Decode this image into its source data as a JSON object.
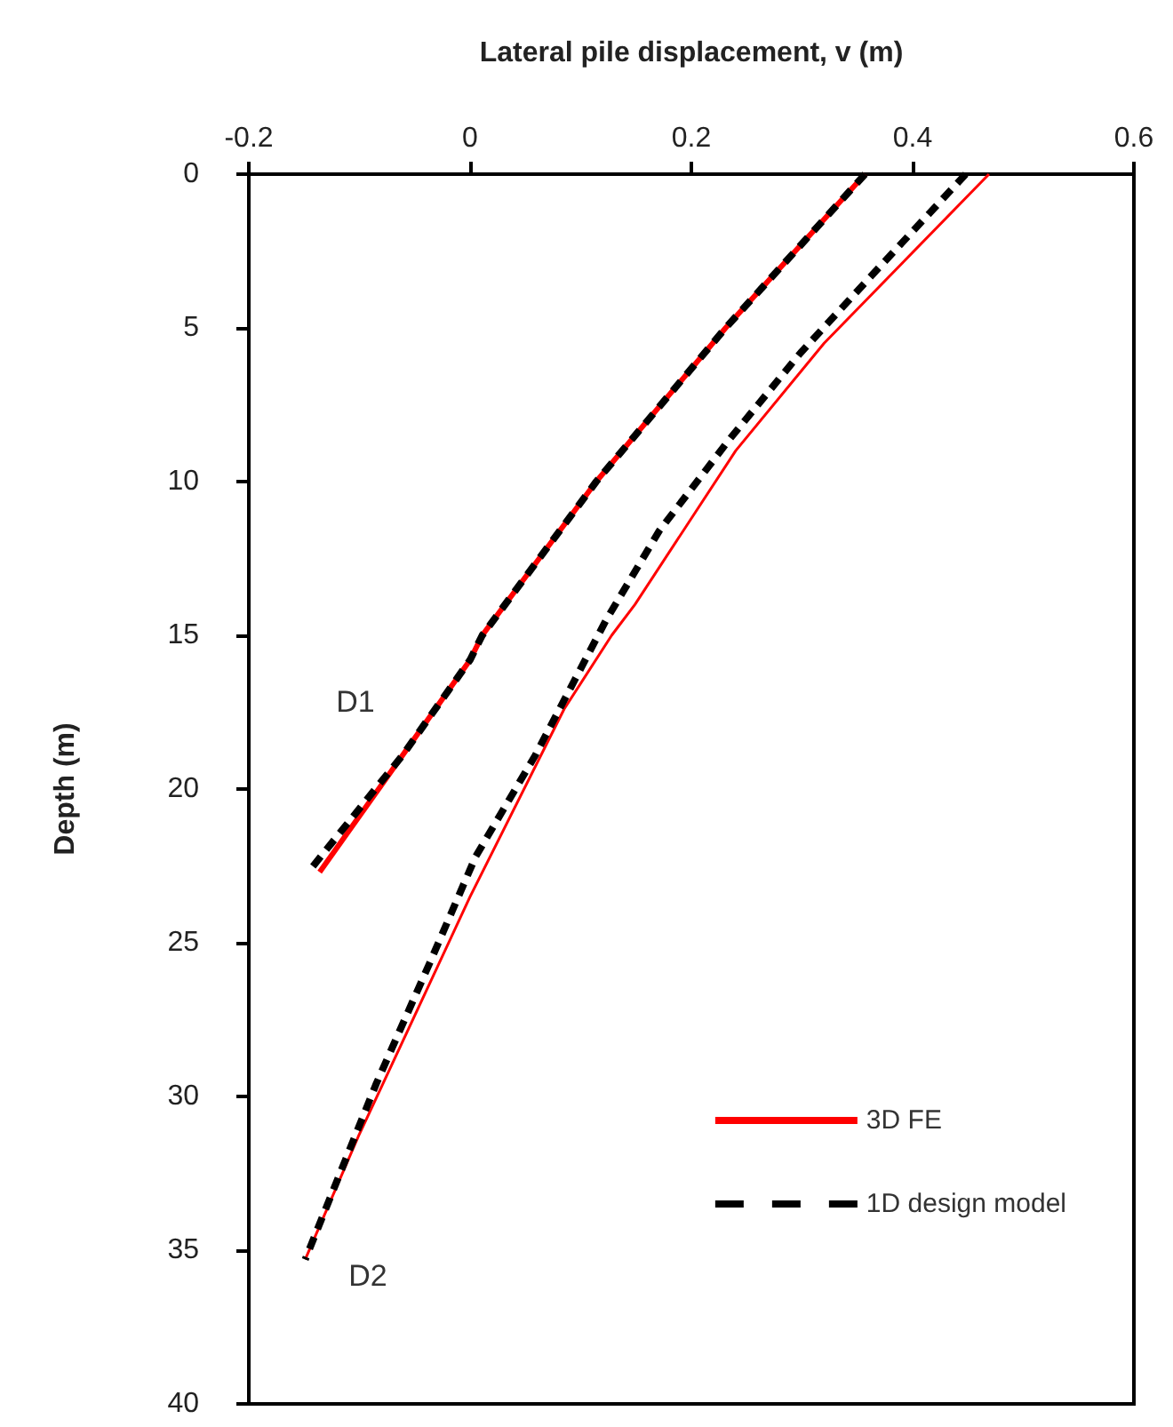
{
  "chart_data": {
    "type": "line",
    "xlabel": "Lateral pile displacement, v (m)",
    "ylabel": "Depth (m)",
    "xlim": [
      -0.2,
      0.6
    ],
    "xticks": [
      -0.2,
      0,
      0.2,
      0.4,
      0.6
    ],
    "ylim": [
      40,
      0
    ],
    "yticks": [
      0,
      5,
      10,
      15,
      20,
      25,
      30,
      35,
      40
    ],
    "grid": false,
    "legend": "bottom right",
    "marker": "none",
    "series": [
      {
        "name": "3D FE",
        "color": "#ff0000",
        "line_style": "solid",
        "x": [
          0.357,
          0.231,
          0.114,
          0.011,
          0,
          -0.061,
          -0.136
        ],
        "values": [
          0,
          5,
          10,
          15,
          15.8,
          18.9,
          22.7
        ]
      },
      {
        "name": "1D design model",
        "color": "#000000",
        "line_style": "dashed",
        "x": [
          0.357,
          0.231,
          0.114,
          0.011,
          0,
          -0.061,
          -0.144
        ],
        "values": [
          0,
          5,
          10,
          15,
          15.8,
          18.9,
          22.6
        ]
      },
      {
        "color": "#ff0000",
        "line_style": "solid",
        "x": [
          0.469,
          0.32,
          0.24,
          0.149,
          0.128,
          0.085,
          0,
          -0.053,
          -0.101,
          -0.149
        ],
        "values": [
          0,
          5.5,
          9,
          14,
          15,
          17.4,
          23.5,
          27.6,
          31.3,
          35.3
        ]
      },
      {
        "color": "#000000",
        "line_style": "dashed",
        "x": [
          0.448,
          0.368,
          0.299,
          0.235,
          0.171,
          0.123,
          0.059,
          0.005,
          -0.037,
          -0.085,
          -0.149
        ],
        "values": [
          0,
          3.1,
          5.8,
          8.6,
          11.6,
          14.5,
          18.9,
          22.2,
          25.7,
          29.6,
          35.3
        ]
      }
    ],
    "annotations": [
      "D1",
      "D2"
    ]
  }
}
